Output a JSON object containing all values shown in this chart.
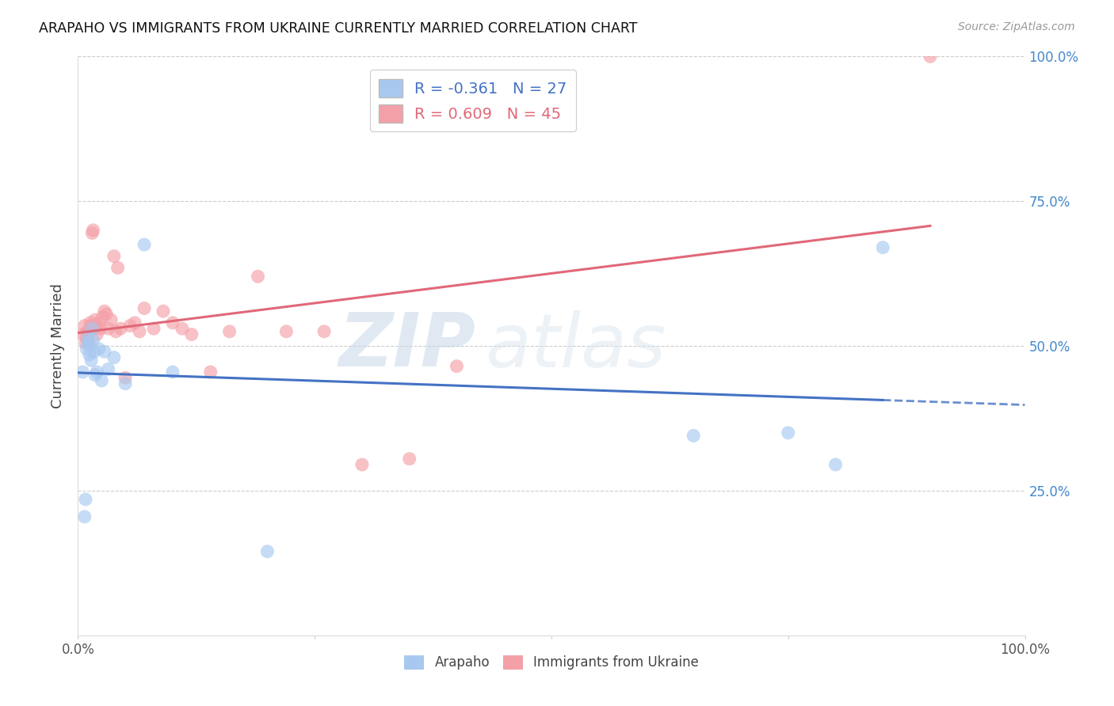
{
  "title": "ARAPAHO VS IMMIGRANTS FROM UKRAINE CURRENTLY MARRIED CORRELATION CHART",
  "source": "Source: ZipAtlas.com",
  "ylabel": "Currently Married",
  "x_min": 0.0,
  "x_max": 1.0,
  "y_min": 0.0,
  "y_max": 1.0,
  "arapaho_R": -0.361,
  "arapaho_N": 27,
  "ukraine_R": 0.609,
  "ukraine_N": 45,
  "arapaho_color": "#A8C8F0",
  "ukraine_color": "#F4A0A8",
  "arapaho_line_color": "#4472C4",
  "ukraine_line_color": "#E06878",
  "watermark_zip": "ZIP",
  "watermark_atlas": "atlas",
  "arapaho_x": [
    0.005,
    0.007,
    0.008,
    0.009,
    0.01,
    0.011,
    0.012,
    0.013,
    0.014,
    0.015,
    0.016,
    0.017,
    0.018,
    0.02,
    0.022,
    0.025,
    0.028,
    0.032,
    0.038,
    0.05,
    0.07,
    0.1,
    0.2,
    0.65,
    0.75,
    0.8,
    0.85
  ],
  "arapaho_y": [
    0.455,
    0.205,
    0.235,
    0.495,
    0.505,
    0.515,
    0.485,
    0.5,
    0.475,
    0.53,
    0.51,
    0.49,
    0.45,
    0.455,
    0.495,
    0.44,
    0.49,
    0.46,
    0.48,
    0.435,
    0.675,
    0.455,
    0.145,
    0.345,
    0.35,
    0.295,
    0.67
  ],
  "ukraine_x": [
    0.005,
    0.007,
    0.008,
    0.009,
    0.01,
    0.011,
    0.012,
    0.013,
    0.014,
    0.015,
    0.016,
    0.017,
    0.018,
    0.019,
    0.02,
    0.022,
    0.024,
    0.026,
    0.028,
    0.03,
    0.032,
    0.035,
    0.038,
    0.04,
    0.042,
    0.045,
    0.05,
    0.055,
    0.06,
    0.065,
    0.07,
    0.08,
    0.09,
    0.1,
    0.11,
    0.12,
    0.14,
    0.16,
    0.19,
    0.22,
    0.26,
    0.3,
    0.35,
    0.4,
    0.9
  ],
  "ukraine_y": [
    0.52,
    0.535,
    0.505,
    0.515,
    0.525,
    0.51,
    0.525,
    0.54,
    0.535,
    0.695,
    0.7,
    0.53,
    0.545,
    0.535,
    0.52,
    0.54,
    0.53,
    0.55,
    0.56,
    0.555,
    0.53,
    0.545,
    0.655,
    0.525,
    0.635,
    0.53,
    0.445,
    0.535,
    0.54,
    0.525,
    0.565,
    0.53,
    0.56,
    0.54,
    0.53,
    0.52,
    0.455,
    0.525,
    0.62,
    0.525,
    0.525,
    0.295,
    0.305,
    0.465,
    1.0
  ]
}
